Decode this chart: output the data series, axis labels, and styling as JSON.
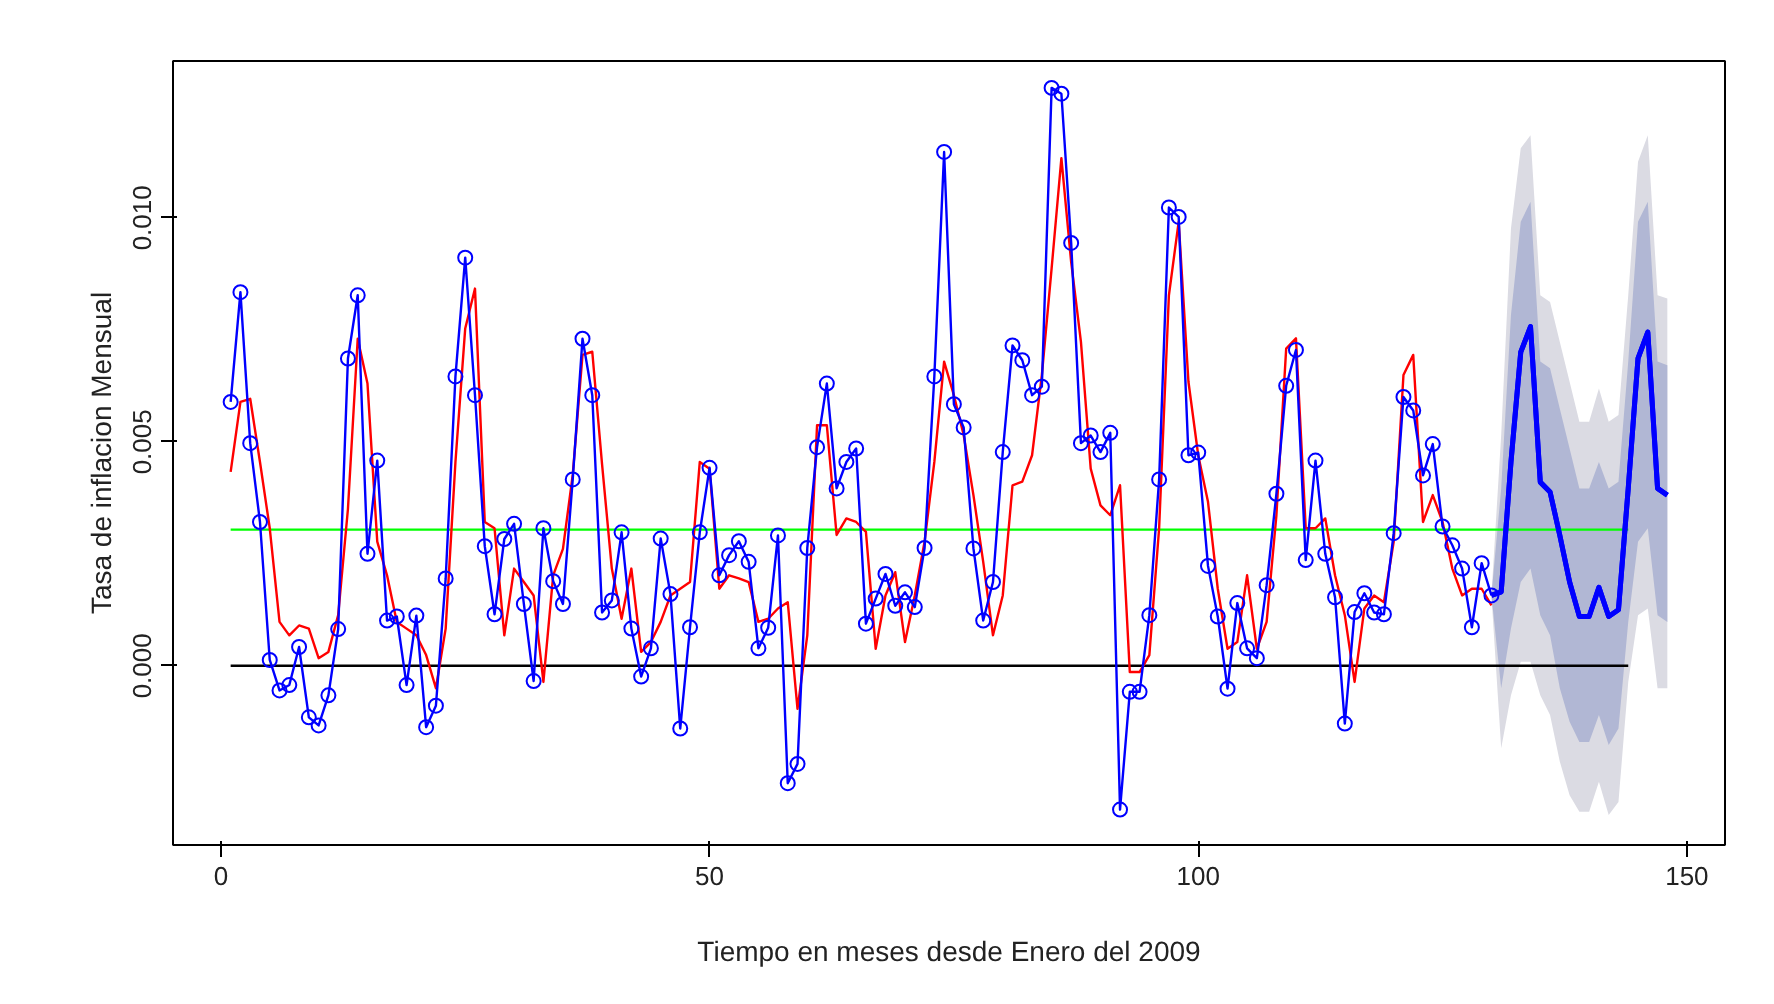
{
  "chart_data": {
    "type": "line",
    "xlabel": "Tiempo en meses desde Enero del 2009",
    "ylabel": "Tasa de inflacion Mensual",
    "xlim": [
      -4.9,
      153.9
    ],
    "ylim": [
      -0.004,
      0.0135
    ],
    "xticks": [
      0,
      50,
      100,
      150
    ],
    "yticks": [
      {
        "value": 0,
        "label": "0.000"
      },
      {
        "value": 0.005,
        "label": "0.005"
      },
      {
        "value": 0.01,
        "label": "0.010"
      }
    ],
    "grid": false,
    "series": [
      {
        "color": "#00ff00",
        "x": [
          1,
          144
        ],
        "values": [
          0.00304,
          0.00304
        ],
        "marker": "none"
      },
      {
        "color": "#000000",
        "x": [
          1,
          144
        ],
        "values": [
          0,
          0
        ],
        "marker": "none"
      },
      {
        "color": "#ff0000",
        "marker": "none",
        "x": [
          1,
          2,
          3,
          4,
          5,
          6,
          7,
          8,
          9,
          10,
          11,
          12,
          13,
          14,
          15,
          16,
          17,
          18,
          19,
          20,
          21,
          22,
          23,
          24,
          25,
          26,
          27,
          28,
          29,
          30,
          31,
          32,
          33,
          34,
          35,
          36,
          37,
          38,
          39,
          40,
          41,
          42,
          43,
          44,
          45,
          46,
          47,
          48,
          49,
          50,
          51,
          52,
          53,
          54,
          55,
          56,
          57,
          58,
          59,
          60,
          61,
          62,
          63,
          64,
          65,
          66,
          67,
          68,
          69,
          70,
          71,
          72,
          73,
          74,
          75,
          76,
          77,
          78,
          79,
          80,
          81,
          82,
          83,
          84,
          85,
          86,
          87,
          88,
          89,
          90,
          91,
          92,
          93,
          94,
          95,
          96,
          97,
          98,
          99,
          100,
          101,
          102,
          103,
          104,
          105,
          106,
          107,
          108,
          109,
          110,
          111,
          112,
          113,
          114,
          115,
          116,
          117,
          118,
          119,
          120,
          121,
          122,
          123,
          124,
          125,
          126,
          127,
          128,
          129,
          130
        ],
        "values": [
          0.00433,
          0.00589,
          0.00596,
          0.00455,
          0.00307,
          0.00098,
          0.00068,
          0.0009,
          0.00083,
          0.00017,
          0.00031,
          0.00113,
          0.0035,
          0.0073,
          0.0063,
          0.00277,
          0.00202,
          0.00098,
          0.00083,
          0.00068,
          0.00024,
          -0.0005,
          0.00083,
          0.00455,
          0.00753,
          0.00842,
          0.00321,
          0.00307,
          0.00068,
          0.00217,
          0.00187,
          0.00157,
          -0.00036,
          0.00202,
          0.00261,
          0.00426,
          0.00694,
          0.00701,
          0.0045,
          0.00217,
          0.00105,
          0.00217,
          0.00031,
          0.00053,
          0.00098,
          0.00157,
          0.00172,
          0.00187,
          0.00455,
          0.0044,
          0.00172,
          0.00202,
          0.00195,
          0.00187,
          0.00098,
          0.00105,
          0.00128,
          0.00142,
          -0.00096,
          0.00068,
          0.00537,
          0.00537,
          0.00292,
          0.00329,
          0.00321,
          0.00299,
          0.00038,
          0.00157,
          0.00209,
          0.00053,
          0.00157,
          0.00277,
          0.00455,
          0.00679,
          0.00604,
          0.00515,
          0.00381,
          0.00232,
          0.00068,
          0.00157,
          0.00403,
          0.00411,
          0.0047,
          0.00649,
          0.00887,
          0.01133,
          0.00901,
          0.00723,
          0.0044,
          0.00358,
          0.00336,
          0.00403,
          -0.00014,
          -0.00014,
          0.00024,
          0.00307,
          0.00827,
          0.00991,
          0.00634,
          0.0047,
          0.00366,
          0.00172,
          0.00038,
          0.00053,
          0.00202,
          0.00038,
          0.00098,
          0.00336,
          0.00708,
          0.00731,
          0.00307,
          0.00307,
          0.00329,
          0.00202,
          0.00113,
          -0.00036,
          0.00128,
          0.00157,
          0.00142,
          0.00277,
          0.00649,
          0.00694,
          0.00321,
          0.00381,
          0.00321,
          0.00217,
          0.00157,
          0.00172,
          0.00172,
          0.00135
        ]
      },
      {
        "color": "#0000ff",
        "marker": "circle",
        "x": [
          1,
          2,
          3,
          4,
          5,
          6,
          7,
          8,
          9,
          10,
          11,
          12,
          13,
          14,
          15,
          16,
          17,
          18,
          19,
          20,
          21,
          22,
          23,
          24,
          25,
          26,
          27,
          28,
          29,
          30,
          31,
          32,
          33,
          34,
          35,
          36,
          37,
          38,
          39,
          40,
          41,
          42,
          43,
          44,
          45,
          46,
          47,
          48,
          49,
          50,
          51,
          52,
          53,
          54,
          55,
          56,
          57,
          58,
          59,
          60,
          61,
          62,
          63,
          64,
          65,
          66,
          67,
          68,
          69,
          70,
          71,
          72,
          73,
          74,
          75,
          76,
          77,
          78,
          79,
          80,
          81,
          82,
          83,
          84,
          85,
          86,
          87,
          88,
          89,
          90,
          91,
          92,
          93,
          94,
          95,
          96,
          97,
          98,
          99,
          100,
          101,
          102,
          103,
          104,
          105,
          106,
          107,
          108,
          109,
          110,
          111,
          112,
          113,
          114,
          115,
          116,
          117,
          118,
          119,
          120,
          121,
          122,
          123,
          124,
          125,
          126,
          127,
          128,
          129,
          130
        ],
        "values": [
          0.00589,
          0.00834,
          0.00497,
          0.00321,
          0.00013,
          -0.00055,
          -0.00043,
          0.00042,
          -0.00115,
          -0.00133,
          -0.00066,
          0.00082,
          0.00686,
          0.00827,
          0.0025,
          0.00458,
          0.00101,
          0.0011,
          -0.00043,
          0.00112,
          -0.00137,
          -0.00089,
          0.00195,
          0.00646,
          0.00911,
          0.00604,
          0.00267,
          0.00115,
          0.00283,
          0.00317,
          0.00138,
          -0.00034,
          0.00307,
          0.00189,
          0.00138,
          0.00416,
          0.0073,
          0.00604,
          0.00119,
          0.00146,
          0.00298,
          0.00083,
          -0.00024,
          0.00039,
          0.00284,
          0.0016,
          -0.0014,
          0.00086,
          0.00298,
          0.00442,
          0.00202,
          0.00247,
          0.00278,
          0.00232,
          0.00039,
          0.00085,
          0.00291,
          -0.00262,
          -0.00219,
          0.00263,
          0.00488,
          0.0063,
          0.00396,
          0.00455,
          0.00485,
          0.00094,
          0.0015,
          0.00205,
          0.00134,
          0.00164,
          0.00131,
          0.00263,
          0.00646,
          0.01147,
          0.00584,
          0.00532,
          0.00262,
          0.00101,
          0.00187,
          0.00477,
          0.00715,
          0.00682,
          0.00604,
          0.00623,
          0.0129,
          0.01277,
          0.00944,
          0.00497,
          0.00514,
          0.00477,
          0.0052,
          -0.00321,
          -0.00058,
          -0.00058,
          0.00113,
          0.00416,
          0.01023,
          0.01002,
          0.0047,
          0.00476,
          0.00223,
          0.0011,
          -0.00051,
          0.0014,
          0.00039,
          0.00017,
          0.0018,
          0.00384,
          0.00625,
          0.00705,
          0.00236,
          0.00458,
          0.0025,
          0.00153,
          -0.00129,
          0.0012,
          0.00162,
          0.00119,
          0.00115,
          0.00296,
          0.006,
          0.0057,
          0.00425,
          0.00495,
          0.00311,
          0.00269,
          0.00217,
          0.00086,
          0.00229,
          0.00157
        ]
      },
      {
        "type": "line",
        "color": "#0000ff",
        "marker": "none",
        "x": [
          130,
          131,
          132,
          133,
          134,
          135,
          136,
          137,
          138,
          139,
          140,
          141,
          142,
          143,
          144,
          145,
          146,
          147,
          148
        ],
        "values": [
          0.00157,
          0.00165,
          0.00455,
          0.007,
          0.00757,
          0.0041,
          0.00388,
          0.00291,
          0.00187,
          0.0011,
          0.0011,
          0.00175,
          0.0011,
          0.00125,
          0.00396,
          0.00686,
          0.00745,
          0.00396,
          0.00381
        ],
        "lower": [
          0.00157,
          -0.00184,
          -0.00066,
          9e-05,
          9e-05,
          -0.00066,
          -0.0011,
          -0.00214,
          -0.00289,
          -0.00326,
          -0.00326,
          -0.00259,
          -0.00333,
          -0.00304,
          -0.00036,
          0.00113,
          0.00128,
          -0.0005,
          -0.0005
        ],
        "upper": [
          0.00157,
          0.00515,
          0.00976,
          0.01155,
          0.01184,
          0.00827,
          0.00812,
          0.00723,
          0.00634,
          0.00545,
          0.00545,
          0.00619,
          0.00545,
          0.0056,
          0.00827,
          0.01125,
          0.01184,
          0.00827,
          0.0082
        ]
      },
      {
        "type": "line",
        "color": "#0000ff",
        "marker": "none",
        "x": [
          130,
          131,
          132,
          133,
          134,
          135,
          136,
          137,
          138,
          139,
          140,
          141,
          142,
          143,
          144,
          145,
          146,
          147,
          148
        ],
        "values": [
          0.00157,
          0.00165,
          0.00455,
          0.007,
          0.00757,
          0.0041,
          0.00388,
          0.00291,
          0.00187,
          0.0011,
          0.0011,
          0.00175,
          0.0011,
          0.00125,
          0.00396,
          0.00686,
          0.00745,
          0.00396,
          0.00381
        ],
        "lower": [
          0.00157,
          -0.0005,
          0.00083,
          0.00187,
          0.00217,
          0.00113,
          0.00068,
          -0.0005,
          -0.00125,
          -0.0017,
          -0.0017,
          -0.0011,
          -0.00177,
          -0.0014,
          0.00098,
          0.00277,
          0.00307,
          0.00113,
          0.00098
        ],
        "upper": [
          0.00157,
          0.00396,
          0.00783,
          0.00991,
          0.01036,
          0.00679,
          0.00664,
          0.00574,
          0.00485,
          0.00396,
          0.00396,
          0.00455,
          0.00396,
          0.00411,
          0.00679,
          0.00991,
          0.01036,
          0.00679,
          0.00671
        ]
      }
    ]
  }
}
